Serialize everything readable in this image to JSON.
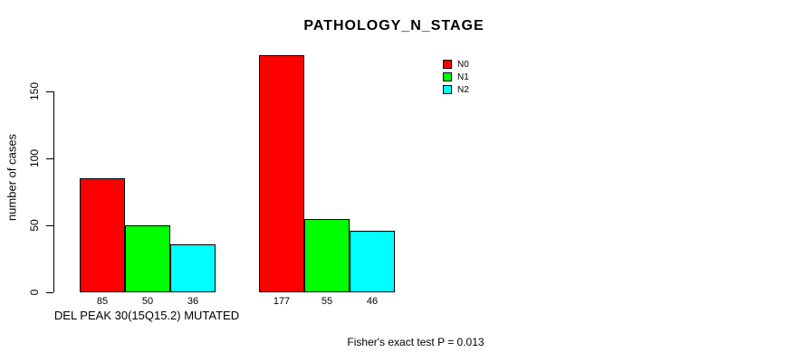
{
  "chart_data": {
    "type": "bar",
    "title": "PATHOLOGY_N_STAGE",
    "ylabel": "number of cases",
    "xlabel": "DEL PEAK 30(15Q15.2) MUTATED",
    "annotation": "Fisher's exact test P = 0.013",
    "ylim": [
      0,
      177
    ],
    "yticks": [
      0,
      50,
      100,
      150
    ],
    "grid": false,
    "legend_position": "inside-top-right",
    "bar_value_labels": true,
    "group_count": 2,
    "series": [
      {
        "name": "N0",
        "color": "#FF0000",
        "values": [
          85,
          177
        ]
      },
      {
        "name": "N1",
        "color": "#00FF00",
        "values": [
          50,
          55
        ]
      },
      {
        "name": "N2",
        "color": "#00FFFF",
        "values": [
          36,
          46
        ]
      }
    ]
  }
}
